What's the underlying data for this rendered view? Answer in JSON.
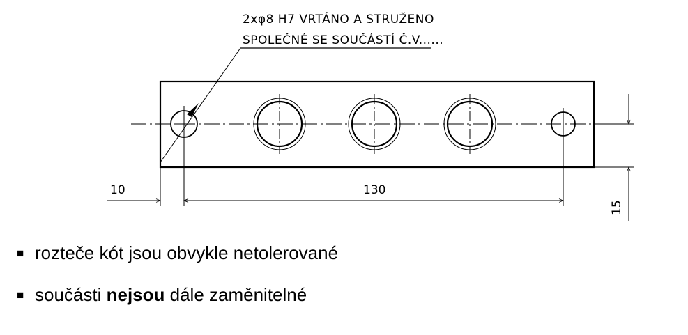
{
  "drawing": {
    "note_line1": "2xφ8 H7 VRTÁNO A STRUŽENO",
    "note_line2": "SPOLEČNÉ SE SOUČÁSTÍ Č.V......",
    "dim_10": "10",
    "dim_130": "130",
    "dim_15": "15"
  },
  "bullets": [
    {
      "marker": "■",
      "text": "rozteče kót jsou obvykle netolerované"
    },
    {
      "marker": "■",
      "pre": "součásti ",
      "bold": "nejsou",
      "post": " dále zaměnitelné"
    }
  ]
}
